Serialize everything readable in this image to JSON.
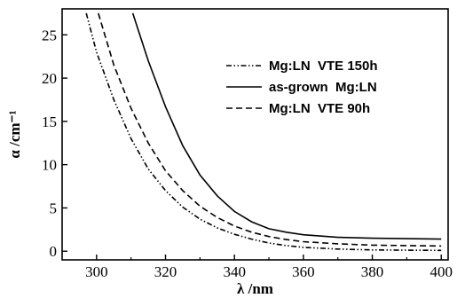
{
  "chart_data": {
    "type": "line",
    "title": "",
    "xlabel": "λ /nm",
    "ylabel": "α /cm⁻¹",
    "xlim": [
      290,
      402
    ],
    "ylim": [
      -1,
      28
    ],
    "xticks": [
      300,
      320,
      340,
      360,
      380,
      400
    ],
    "yticks": [
      0,
      5,
      10,
      15,
      20,
      25
    ],
    "grid": false,
    "legend_position": "top-right",
    "series": [
      {
        "name": "Mg:LN  VTE 150h",
        "line_style": "dash-dot-dot",
        "x": [
          297,
          300,
          305,
          310,
          315,
          320,
          325,
          330,
          335,
          340,
          345,
          350,
          355,
          360,
          370,
          380,
          390,
          400
        ],
        "y": [
          27.5,
          23,
          17.5,
          13,
          9.5,
          7.0,
          5.1,
          3.7,
          2.7,
          1.95,
          1.4,
          0.95,
          0.65,
          0.45,
          0.25,
          0.15,
          0.12,
          0.1
        ]
      },
      {
        "name": "as-grown  Mg:LN",
        "line_style": "solid",
        "x": [
          310.5,
          315,
          320,
          325,
          330,
          335,
          340,
          345,
          350,
          355,
          360,
          370,
          380,
          390,
          400
        ],
        "y": [
          27.5,
          22,
          16.7,
          12.2,
          8.8,
          6.4,
          4.6,
          3.4,
          2.6,
          2.2,
          1.9,
          1.6,
          1.5,
          1.45,
          1.4
        ]
      },
      {
        "name": "Mg:LN  VTE 90h",
        "line_style": "dashed",
        "x": [
          300.5,
          305,
          310,
          315,
          320,
          325,
          330,
          335,
          340,
          345,
          350,
          355,
          360,
          370,
          380,
          390,
          400
        ],
        "y": [
          27.5,
          21.5,
          16.5,
          12.5,
          9.3,
          7.0,
          5.2,
          3.9,
          2.9,
          2.2,
          1.7,
          1.35,
          1.1,
          0.85,
          0.7,
          0.65,
          0.6
        ]
      }
    ]
  }
}
